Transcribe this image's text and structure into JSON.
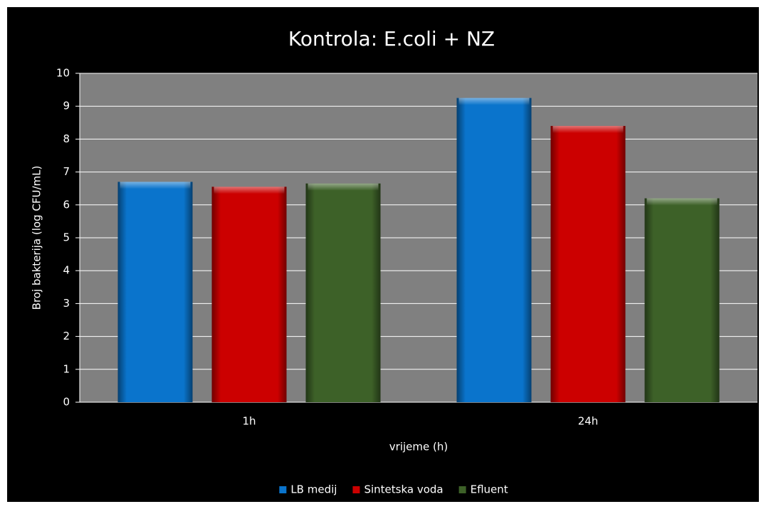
{
  "chart_data": {
    "type": "bar",
    "title": "Kontrola: E.coli + NZ",
    "x_label": "vrijeme (h)",
    "y_label": "Broj bakterija (log CFU/mL)",
    "categories": [
      "1h",
      "24h"
    ],
    "series": [
      {
        "name": "LB medij",
        "color": "#0a74cc",
        "values": [
          6.7,
          9.25
        ]
      },
      {
        "name": "Sintetska voda",
        "color": "#cc0000",
        "values": [
          6.55,
          8.4
        ]
      },
      {
        "name": "Efluent",
        "color": "#3d6128",
        "values": [
          6.65,
          6.2
        ]
      }
    ],
    "ylim": [
      0,
      10
    ],
    "yticks": [
      0,
      1,
      2,
      3,
      4,
      5,
      6,
      7,
      8,
      9,
      10
    ],
    "grid": true,
    "legend": "bottom"
  }
}
